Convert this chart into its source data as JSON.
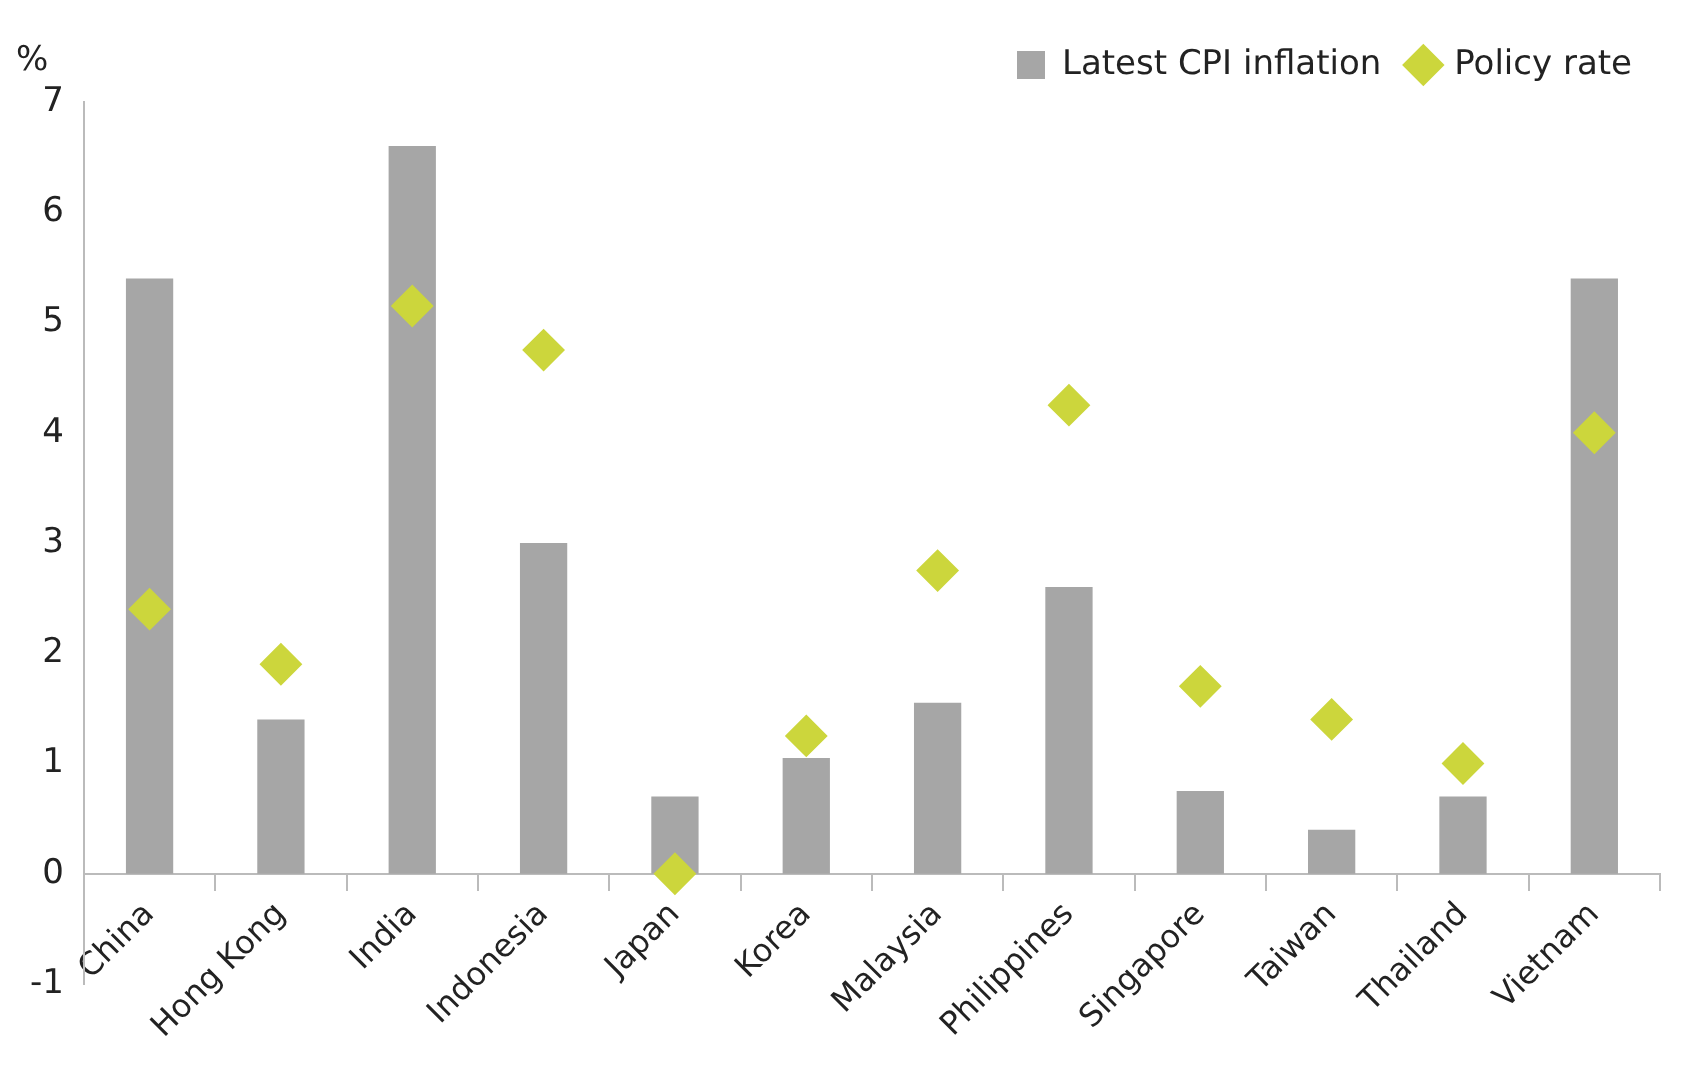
{
  "chart_data": {
    "type": "bar",
    "ylabel": "%",
    "categories": [
      "China",
      "Hong Kong",
      "India",
      "Indonesia",
      "Japan",
      "Korea",
      "Malaysia",
      "Philippines",
      "Singapore",
      "Taiwan",
      "Thailand",
      "Vietnam"
    ],
    "series": [
      {
        "name": "Latest CPI inflation",
        "color": "#a6a6a6",
        "values": [
          5.4,
          1.4,
          6.6,
          3.0,
          0.7,
          1.05,
          1.55,
          2.6,
          0.75,
          0.4,
          0.7,
          5.4
        ]
      },
      {
        "name": "Policy rate",
        "type": "scatter",
        "color": "#ccd63c",
        "marker": "diamond",
        "values": [
          2.4,
          1.9,
          5.15,
          4.75,
          0,
          1.25,
          2.75,
          4.25,
          1.7,
          1.4,
          1.0,
          4.0
        ]
      }
    ],
    "ylim": [
      -1,
      7
    ],
    "yticks": [
      -1,
      0,
      1,
      2,
      3,
      4,
      5,
      6,
      7
    ],
    "grid": false,
    "legend": "top right"
  }
}
